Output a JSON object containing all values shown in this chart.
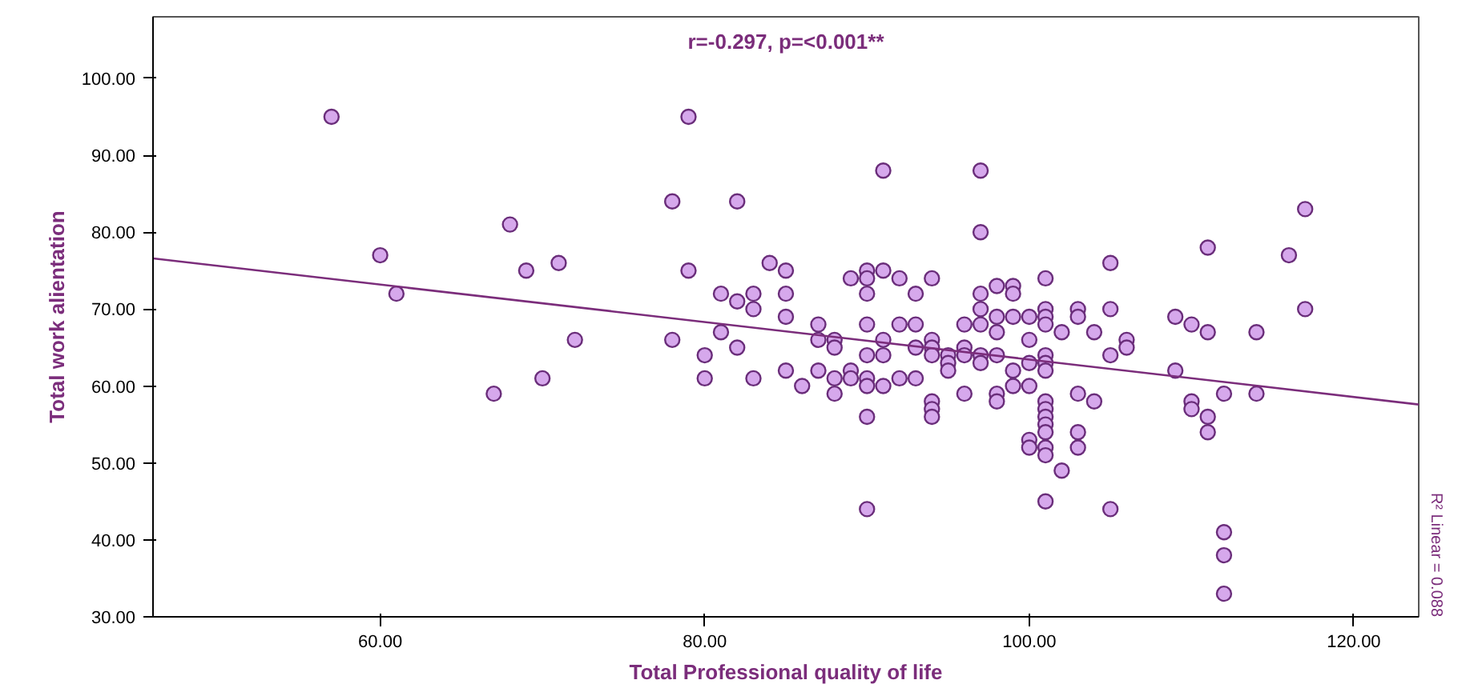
{
  "chart_data": {
    "type": "scatter",
    "xlabel": "Total Professional quality of life",
    "ylabel": "Total work alientation",
    "annotations": [
      "r=-0.297, p=<0.001**",
      "R² Linear = 0.088"
    ],
    "xlim": [
      46,
      124
    ],
    "ylim": [
      30,
      108
    ],
    "xticks": [
      {
        "value": 60,
        "label": "60.00"
      },
      {
        "value": 80,
        "label": "80.00"
      },
      {
        "value": 100,
        "label": "100.00"
      },
      {
        "value": 120,
        "label": "120.00"
      }
    ],
    "yticks": [
      {
        "value": 30,
        "label": "30.00"
      },
      {
        "value": 40,
        "label": "40.00"
      },
      {
        "value": 50,
        "label": "50.00"
      },
      {
        "value": 60,
        "label": "60.00"
      },
      {
        "value": 70,
        "label": "70.00"
      },
      {
        "value": 80,
        "label": "80.00"
      },
      {
        "value": 90,
        "label": "90.00"
      },
      {
        "value": 100,
        "label": "100.00"
      }
    ],
    "grid": false,
    "series": [
      {
        "marker": "circle",
        "color": "#d6a8ec",
        "x": [
          57,
          60,
          61,
          68,
          69,
          71,
          72,
          67,
          70,
          78,
          79,
          82,
          79,
          78,
          80,
          80,
          81,
          82,
          81,
          82,
          83,
          83,
          83,
          84,
          85,
          85,
          85,
          85,
          91,
          97,
          97,
          117,
          111,
          116,
          105,
          89,
          90,
          90,
          91,
          92,
          94,
          101,
          90,
          93,
          97,
          98,
          99,
          99,
          117,
          97,
          98,
          99,
          100,
          101,
          101,
          101,
          103,
          103,
          105,
          109,
          110,
          111,
          114,
          102,
          104,
          98,
          87,
          90,
          92,
          93,
          96,
          97,
          87,
          88,
          88,
          91,
          94,
          94,
          94,
          93,
          95,
          95,
          95,
          96,
          96,
          97,
          97,
          98,
          100,
          100,
          101,
          101,
          101,
          99,
          106,
          106,
          105,
          109,
          90,
          91,
          87,
          88,
          89,
          89,
          90,
          90,
          91,
          92,
          93,
          86,
          88,
          96,
          98,
          98,
          99,
          100,
          103,
          104,
          112,
          114,
          110,
          110,
          111,
          111,
          90,
          94,
          94,
          94,
          101,
          101,
          101,
          101,
          101,
          100,
          100,
          101,
          101,
          103,
          103,
          102,
          90,
          101,
          105,
          112,
          112,
          112
        ],
        "values": [
          95,
          77,
          72,
          81,
          75,
          76,
          66,
          59,
          61,
          84,
          95,
          84,
          75,
          66,
          64,
          61,
          67,
          65,
          72,
          71,
          72,
          70,
          61,
          76,
          75,
          72,
          69,
          62,
          88,
          88,
          80,
          83,
          78,
          77,
          76,
          74,
          75,
          74,
          75,
          74,
          74,
          74,
          72,
          72,
          72,
          73,
          73,
          72,
          70,
          70,
          69,
          69,
          69,
          70,
          69,
          68,
          70,
          69,
          70,
          69,
          68,
          67,
          67,
          67,
          67,
          67,
          68,
          68,
          68,
          68,
          68,
          68,
          66,
          66,
          65,
          66,
          66,
          65,
          64,
          65,
          64,
          63,
          62,
          65,
          64,
          64,
          63,
          64,
          66,
          63,
          64,
          63,
          62,
          62,
          66,
          65,
          64,
          62,
          64,
          64,
          62,
          61,
          62,
          61,
          61,
          60,
          60,
          61,
          61,
          60,
          59,
          59,
          59,
          58,
          60,
          60,
          59,
          58,
          59,
          59,
          58,
          57,
          56,
          54,
          56,
          58,
          57,
          56,
          58,
          57,
          56,
          55,
          54,
          53,
          52,
          52,
          51,
          54,
          52,
          49,
          44,
          45,
          44,
          41,
          38,
          33
        ]
      },
      {
        "type": "line",
        "color": "#7b2d7b",
        "x": [
          46,
          124
        ],
        "values": [
          76.6,
          57.6
        ]
      }
    ]
  }
}
